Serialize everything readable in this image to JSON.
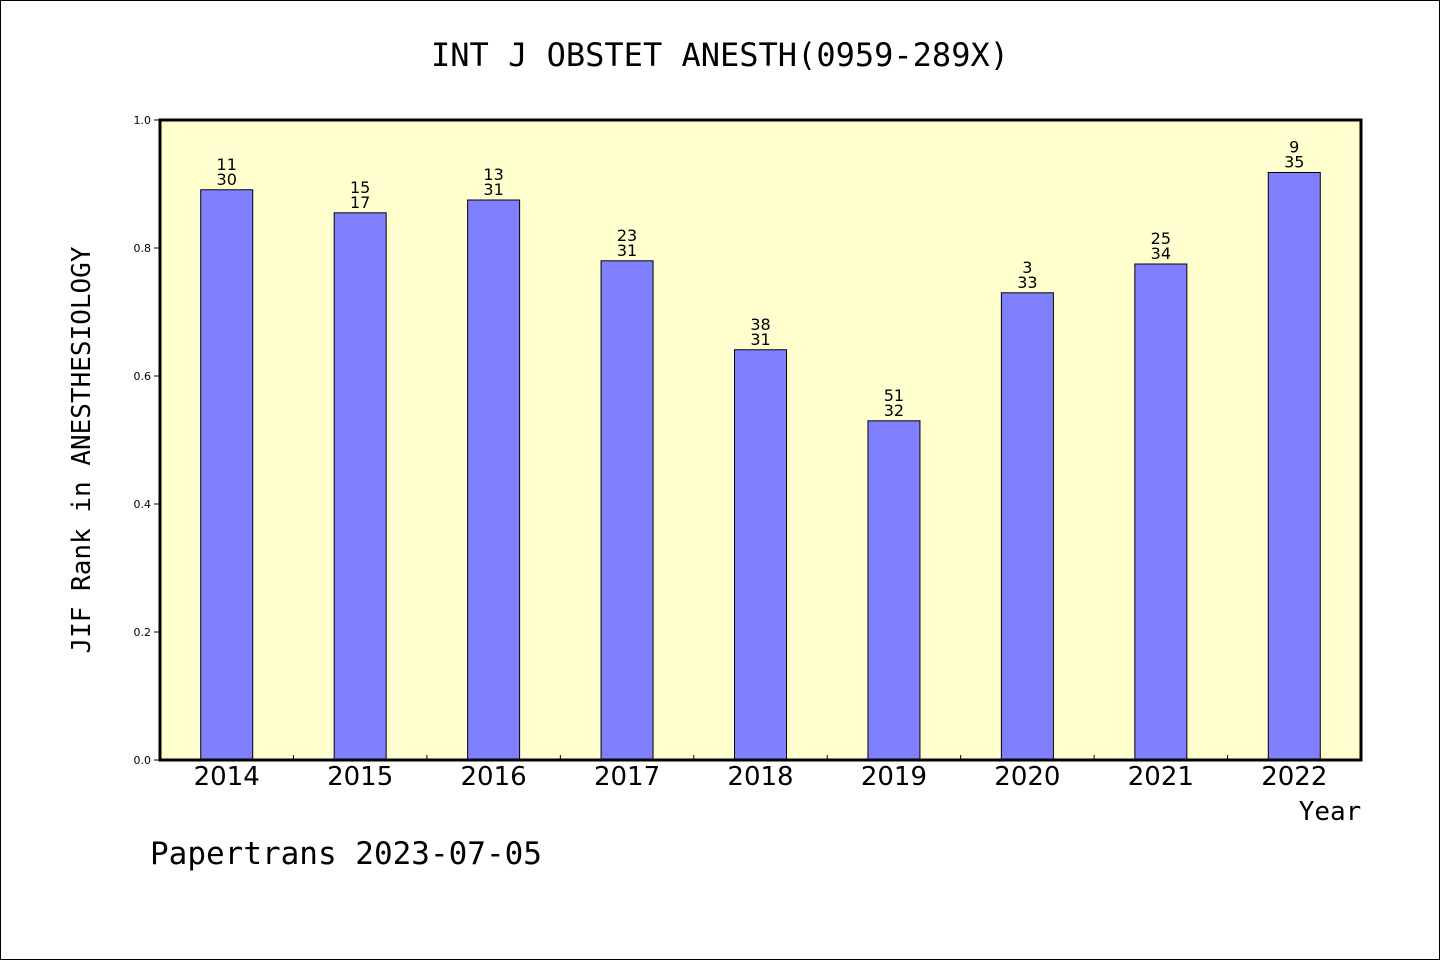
{
  "chart_data": {
    "type": "bar",
    "title": "INT J OBSTET ANESTH(0959-289X)",
    "xlabel": "Year",
    "ylabel": "JIF Rank in ANESTHESIOLOGY",
    "ylim": [
      0,
      1.0
    ],
    "yticks": [
      "0.0",
      "0.2",
      "0.4",
      "0.6",
      "0.8",
      "1.0"
    ],
    "categories": [
      "2014",
      "2015",
      "2016",
      "2017",
      "2018",
      "2019",
      "2020",
      "2021",
      "2022"
    ],
    "values": [
      0.891,
      0.855,
      0.875,
      0.78,
      0.641,
      0.53,
      0.73,
      0.775,
      0.918
    ],
    "bar_labels": [
      {
        "top": "11",
        "bottom": "30"
      },
      {
        "top": "15",
        "bottom": "17"
      },
      {
        "top": "13",
        "bottom": "31"
      },
      {
        "top": "23",
        "bottom": "31"
      },
      {
        "top": "38",
        "bottom": "31"
      },
      {
        "top": "51",
        "bottom": "32"
      },
      {
        "top": "3",
        "bottom": "33"
      },
      {
        "top": "25",
        "bottom": "34"
      },
      {
        "top": "9",
        "bottom": "35"
      }
    ],
    "grid": false,
    "colors": {
      "bar": "#8080ff",
      "plot_bg": "#ffffd0"
    }
  },
  "footer": "Papertrans 2023-07-05"
}
